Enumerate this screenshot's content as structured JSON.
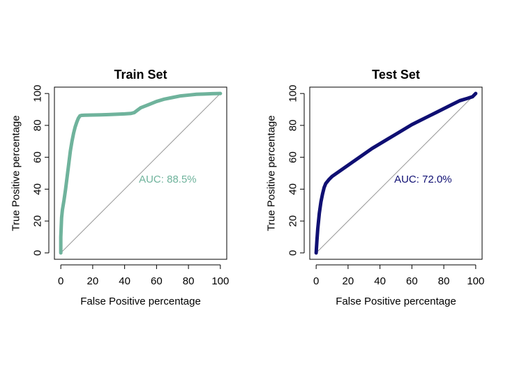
{
  "chart_data": [
    {
      "type": "line",
      "title": "Train Set",
      "xlabel": "False Positive percentage",
      "ylabel": "True Positive percentage",
      "xlim": [
        -4,
        104
      ],
      "ylim": [
        -4,
        104
      ],
      "xticks": [
        0,
        20,
        40,
        60,
        80,
        100
      ],
      "yticks": [
        0,
        20,
        40,
        60,
        80,
        100
      ],
      "grid": false,
      "annotation": {
        "text": "AUC: 88.5%",
        "x": 67,
        "y": 46
      },
      "reference_line": {
        "x": [
          0,
          100
        ],
        "y": [
          0,
          100
        ],
        "color": "#999999"
      },
      "series": [
        {
          "color": "#6fb39c",
          "x": [
            0,
            0,
            0.5,
            1,
            2,
            3,
            4,
            5,
            6,
            7,
            8,
            9,
            10,
            11,
            12,
            13,
            15,
            20,
            25,
            30,
            35,
            40,
            44,
            46,
            48,
            50,
            55,
            60,
            65,
            70,
            75,
            80,
            85,
            90,
            95,
            100
          ],
          "y": [
            0,
            10,
            22,
            27,
            33,
            40,
            48,
            56,
            64,
            70,
            75,
            79,
            82,
            84.5,
            86,
            86.3,
            86.4,
            86.5,
            86.6,
            86.8,
            87,
            87.2,
            87.5,
            88,
            89.5,
            91,
            93,
            95,
            96.5,
            97.5,
            98.5,
            99,
            99.5,
            99.7,
            99.9,
            100
          ]
        }
      ]
    },
    {
      "type": "line",
      "title": "Test Set",
      "xlabel": "False Positive percentage",
      "ylabel": "True Positive percentage",
      "xlim": [
        -4,
        104
      ],
      "ylim": [
        -4,
        104
      ],
      "xticks": [
        0,
        20,
        40,
        60,
        80,
        100
      ],
      "yticks": [
        0,
        20,
        40,
        60,
        80,
        100
      ],
      "grid": false,
      "annotation": {
        "text": "AUC: 72.0%",
        "x": 67,
        "y": 46
      },
      "reference_line": {
        "x": [
          0,
          100
        ],
        "y": [
          0,
          100
        ],
        "color": "#999999"
      },
      "series": [
        {
          "color": "#0f0f73",
          "x": [
            0,
            0.5,
            1,
            2,
            3,
            4,
            5,
            6,
            8,
            10,
            15,
            20,
            25,
            30,
            35,
            40,
            45,
            50,
            55,
            60,
            65,
            70,
            75,
            80,
            85,
            90,
            95,
            98,
            100
          ],
          "y": [
            0,
            8,
            15,
            25,
            32,
            37,
            41,
            43.5,
            46,
            48,
            51.5,
            55,
            58.5,
            62,
            65.5,
            68.5,
            71.5,
            74.5,
            77.5,
            80.5,
            83,
            85.5,
            88,
            90.5,
            93,
            95.5,
            97,
            98,
            100
          ]
        }
      ]
    }
  ]
}
